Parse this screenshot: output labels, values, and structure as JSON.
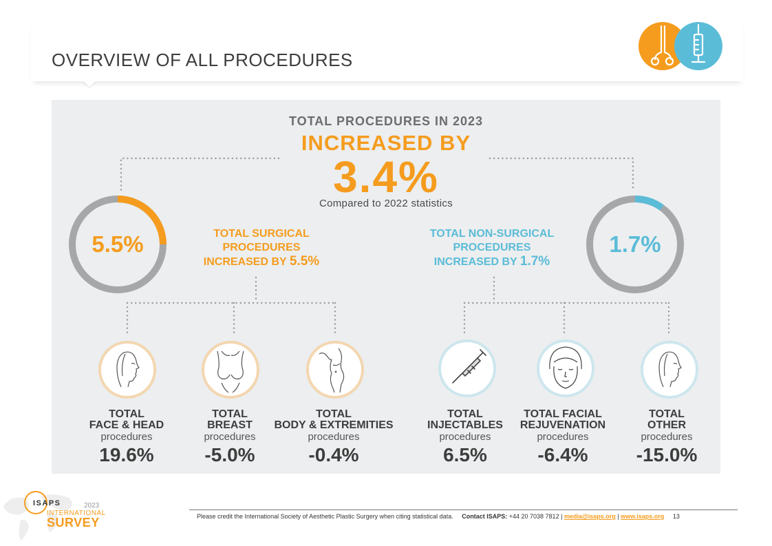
{
  "page": {
    "title": "OVERVIEW OF ALL PROCEDURES",
    "page_number": "13"
  },
  "colors": {
    "orange": "#f59c1e",
    "blue": "#5bbcd8",
    "gray_ring": "#a6a7a9",
    "panel": "#eceeef"
  },
  "headline": {
    "top": "TOTAL PROCEDURES IN 2023",
    "mid": "INCREASED BY",
    "value": "3.4%",
    "sub": "Compared to 2022 statistics"
  },
  "surgical": {
    "donut_label": "5.5%",
    "donut_fraction": 0.25,
    "label_lines": [
      "TOTAL SURGICAL",
      "PROCEDURES",
      "INCREASED BY"
    ],
    "label_value": "5.5%"
  },
  "non_surgical": {
    "donut_label": "1.7%",
    "donut_fraction": 0.1,
    "label_lines": [
      "TOTAL NON-SURGICAL",
      "PROCEDURES",
      "INCREASED BY"
    ],
    "label_value": "1.7%"
  },
  "categories": [
    {
      "line1": "TOTAL",
      "line2": "FACE & HEAD",
      "procedures": "procedures",
      "value": "19.6%",
      "icon": "face-profile-icon",
      "group": "surgical"
    },
    {
      "line1": "TOTAL",
      "line2": "BREAST",
      "procedures": "procedures",
      "value": "-5.0%",
      "icon": "breast-icon",
      "group": "surgical"
    },
    {
      "line1": "TOTAL",
      "line2": "BODY & EXTREMITIES",
      "procedures": "procedures",
      "value": "-0.4%",
      "icon": "body-icon",
      "group": "surgical"
    },
    {
      "line1": "TOTAL",
      "line2": "INJECTABLES",
      "procedures": "procedures",
      "value": "6.5%",
      "icon": "syringe-icon",
      "group": "non_surgical"
    },
    {
      "line1": "TOTAL FACIAL",
      "line2": "REJUVENATION",
      "procedures": "procedures",
      "value": "-6.4%",
      "icon": "face-front-icon",
      "group": "non_surgical"
    },
    {
      "line1": "TOTAL",
      "line2": "OTHER",
      "procedures": "procedures",
      "value": "-15.0%",
      "icon": "face-profile-icon",
      "group": "non_surgical"
    }
  ],
  "footer": {
    "credit": "Please credit the International Society of Aesthetic Plastic Surgery when citing statistical data.",
    "contact_label": "Contact ISAPS:",
    "phone": "+44 20 7038 7812 |",
    "email": "media@isaps.org",
    "sep": "|",
    "website": "www.isaps.org"
  },
  "brand": {
    "name": "ISAPS",
    "year": "2023",
    "line1": "INTERNATIONAL",
    "line2": "SURVEY"
  }
}
